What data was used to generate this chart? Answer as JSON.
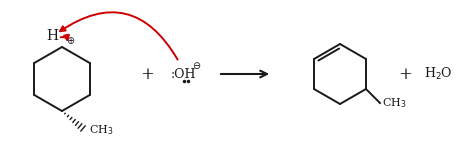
{
  "bg_color": "#ffffff",
  "line_color": "#1a1a1a",
  "red_color": "#cc0000",
  "fig_width": 4.7,
  "fig_height": 1.47,
  "dpi": 100
}
